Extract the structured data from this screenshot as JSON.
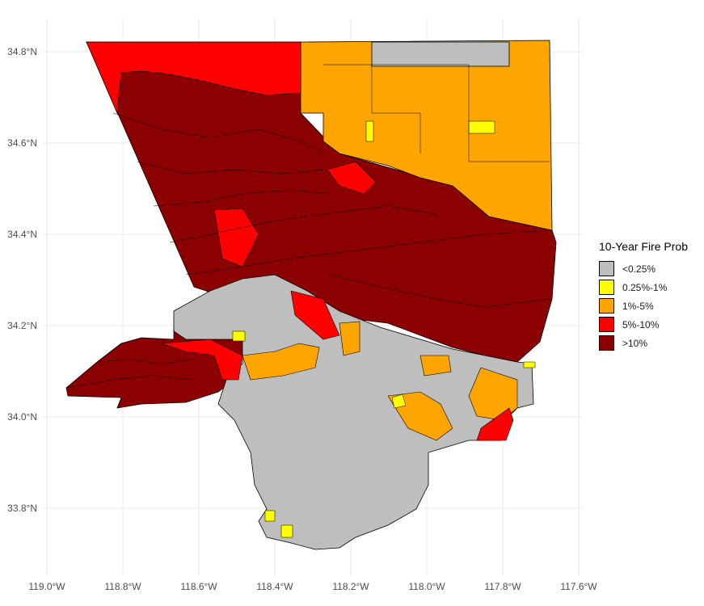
{
  "map": {
    "x_ticks": [
      "119.0°W",
      "118.8°W",
      "118.6°W",
      "118.4°W",
      "118.2°W",
      "118.0°W",
      "117.8°W",
      "117.6°W"
    ],
    "y_ticks": [
      "34.8°N",
      "34.6°N",
      "34.4°N",
      "34.2°N",
      "34.0°N",
      "33.8°N"
    ],
    "colors": {
      "gray": "#bebebe",
      "yellow": "#ffff00",
      "orange": "#ffa500",
      "red": "#ff0000",
      "darkred": "#8b0000"
    }
  },
  "legend": {
    "title": "10-Year Fire Prob",
    "items": [
      {
        "label": "<0.25%",
        "color": "#bebebe"
      },
      {
        "label": "0.25%-1%",
        "color": "#ffff00"
      },
      {
        "label": "1%-5%",
        "color": "#ffa500"
      },
      {
        "label": "5%-10%",
        "color": "#ff0000"
      },
      {
        "label": ">10%",
        "color": "#8b0000"
      }
    ]
  }
}
